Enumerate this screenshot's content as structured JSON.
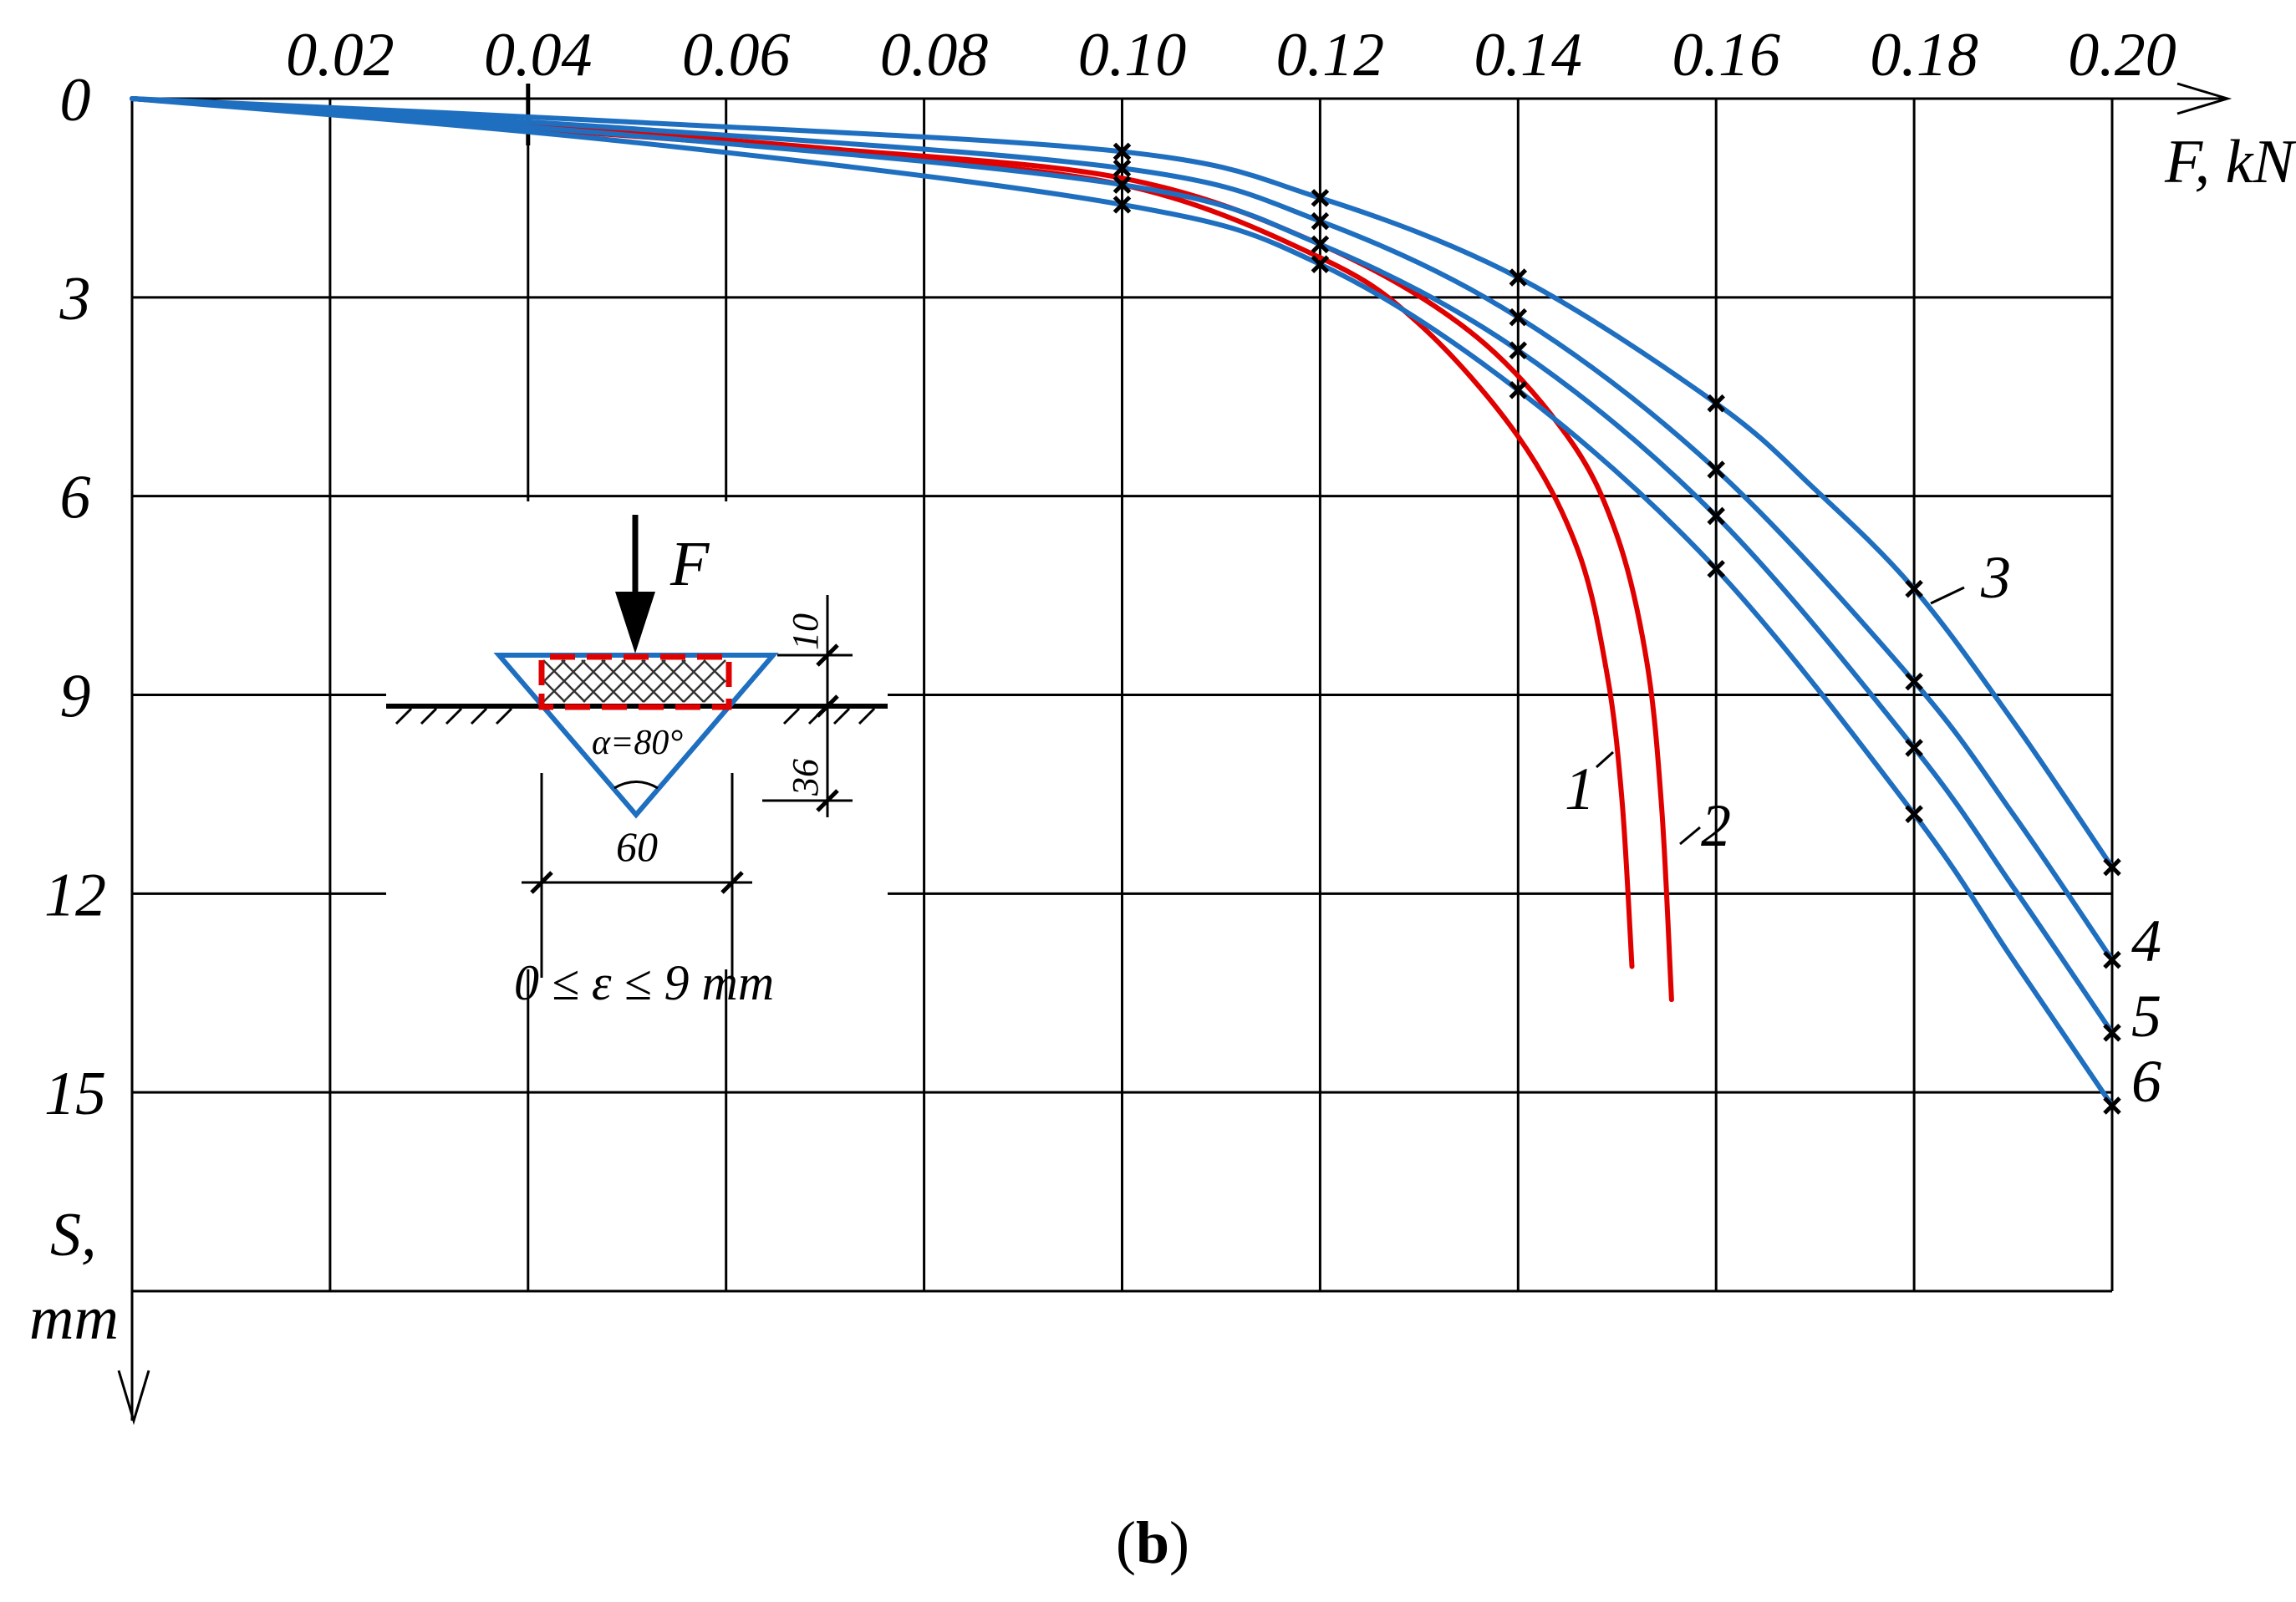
{
  "chart_data": {
    "type": "line",
    "title": "",
    "panel_label": "b",
    "xlabel": "F, kN",
    "ylabel_line1": "S,",
    "ylabel_line2": "mm",
    "xlim": [
      0,
      0.2
    ],
    "ylim": [
      0,
      18
    ],
    "y_inverted": true,
    "grid": true,
    "x_tick_labels": [
      "0.02",
      "0.04",
      "0.06",
      "0.08",
      "0.10",
      "0.12",
      "0.14",
      "0.16",
      "0.18",
      "0.20"
    ],
    "x_ticks": [
      0.02,
      0.04,
      0.06,
      0.08,
      0.1,
      0.12,
      0.14,
      0.16,
      0.18,
      0.2
    ],
    "y_tick_labels": [
      "0",
      "3",
      "6",
      "9",
      "12",
      "15"
    ],
    "y_ticks": [
      0,
      3,
      6,
      9,
      12,
      15
    ],
    "x_gridlines": [
      0.02,
      0.04,
      0.06,
      0.08,
      0.1,
      0.12,
      0.14,
      0.16,
      0.18,
      0.2
    ],
    "y_gridlines": [
      3,
      6,
      9,
      12,
      15,
      18
    ],
    "series": [
      {
        "name": "1",
        "color": "#e00000",
        "markers": false,
        "points": [
          [
            0,
            0
          ],
          [
            0.04,
            0.45
          ],
          [
            0.07,
            0.8
          ],
          [
            0.1,
            1.3
          ],
          [
            0.12,
            2.4
          ],
          [
            0.13,
            3.4
          ],
          [
            0.14,
            5.1
          ],
          [
            0.146,
            6.8
          ],
          [
            0.149,
            8.7
          ],
          [
            0.1505,
            10.6
          ],
          [
            0.1515,
            13.1
          ]
        ]
      },
      {
        "name": "2",
        "color": "#e00000",
        "markers": false,
        "points": [
          [
            0,
            0
          ],
          [
            0.04,
            0.4
          ],
          [
            0.07,
            0.75
          ],
          [
            0.1,
            1.2
          ],
          [
            0.12,
            2.2
          ],
          [
            0.135,
            3.5
          ],
          [
            0.145,
            5.1
          ],
          [
            0.15,
            6.6
          ],
          [
            0.153,
            8.5
          ],
          [
            0.1545,
            10.7
          ],
          [
            0.1555,
            13.6
          ]
        ]
      },
      {
        "name": "3",
        "color": "#1f6fc0",
        "markers": true,
        "marker_x": [
          0.1,
          0.12,
          0.14,
          0.16,
          0.18,
          0.2
        ],
        "points": [
          [
            0,
            0
          ],
          [
            0.05,
            0.35
          ],
          [
            0.1,
            0.8
          ],
          [
            0.12,
            1.5
          ],
          [
            0.14,
            2.7
          ],
          [
            0.16,
            4.6
          ],
          [
            0.17,
            5.9
          ],
          [
            0.18,
            7.4
          ],
          [
            0.19,
            9.4
          ],
          [
            0.2,
            11.6
          ]
        ]
      },
      {
        "name": "4",
        "color": "#1f6fc0",
        "markers": true,
        "marker_x": [
          0.1,
          0.12,
          0.14,
          0.16,
          0.18,
          0.2
        ],
        "points": [
          [
            0,
            0
          ],
          [
            0.05,
            0.45
          ],
          [
            0.1,
            1.05
          ],
          [
            0.12,
            1.85
          ],
          [
            0.14,
            3.3
          ],
          [
            0.16,
            5.6
          ],
          [
            0.18,
            8.8
          ],
          [
            0.19,
            10.8
          ],
          [
            0.2,
            13.0
          ]
        ]
      },
      {
        "name": "5",
        "color": "#1f6fc0",
        "markers": true,
        "marker_x": [
          0.1,
          0.12,
          0.14,
          0.16,
          0.18,
          0.2
        ],
        "points": [
          [
            0,
            0
          ],
          [
            0.05,
            0.55
          ],
          [
            0.1,
            1.3
          ],
          [
            0.12,
            2.2
          ],
          [
            0.14,
            3.8
          ],
          [
            0.16,
            6.3
          ],
          [
            0.18,
            9.8
          ],
          [
            0.19,
            11.9
          ],
          [
            0.2,
            14.1
          ]
        ]
      },
      {
        "name": "6",
        "color": "#1f6fc0",
        "markers": true,
        "marker_x": [
          0.1,
          0.12,
          0.14,
          0.16,
          0.18,
          0.2
        ],
        "points": [
          [
            0,
            0
          ],
          [
            0.05,
            0.65
          ],
          [
            0.1,
            1.6
          ],
          [
            0.12,
            2.5
          ],
          [
            0.14,
            4.4
          ],
          [
            0.16,
            7.1
          ],
          [
            0.18,
            10.8
          ],
          [
            0.19,
            13.0
          ],
          [
            0.2,
            15.2
          ]
        ]
      }
    ],
    "inset": {
      "force_label": "F",
      "alpha_label": "α=80°",
      "dim_top": "10",
      "dim_side": "36",
      "dim_bottom": "60",
      "range_label": "0 ≤ ε ≤ 9 mm",
      "trench_color": "#1f6fc0",
      "fill_color": "#e00000"
    }
  }
}
